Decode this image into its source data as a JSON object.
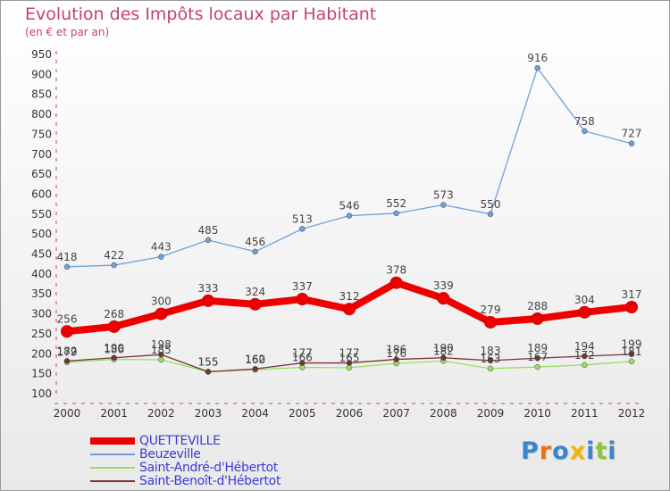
{
  "chart_data": {
    "type": "line",
    "title": "Evolution des Impôts locaux par Habitant",
    "subtitle": "(en € et par an)",
    "categories": [
      "2000",
      "2001",
      "2002",
      "2003",
      "2004",
      "2005",
      "2006",
      "2007",
      "2008",
      "2009",
      "2010",
      "2011",
      "2012"
    ],
    "ylim": [
      100,
      950
    ],
    "yticks": [
      100,
      150,
      200,
      250,
      300,
      350,
      400,
      450,
      500,
      550,
      600,
      650,
      700,
      750,
      800,
      850,
      900,
      950
    ],
    "grid": false,
    "legend_position": "bottom-left",
    "series": [
      {
        "name": "QUETTEVILLE",
        "color": "#ee0000",
        "values": [
          256,
          268,
          300,
          333,
          324,
          337,
          312,
          378,
          339,
          279,
          288,
          304,
          317
        ]
      },
      {
        "name": "Beuzeville",
        "color": "#6fa1d9",
        "values": [
          418,
          422,
          443,
          485,
          456,
          513,
          546,
          552,
          573,
          550,
          916,
          758,
          727
        ]
      },
      {
        "name": "Saint-André-d'Hébertot",
        "color": "#99dd66",
        "values": [
          179,
          186,
          185,
          155,
          160,
          166,
          165,
          176,
          182,
          163,
          167,
          172,
          181
        ]
      },
      {
        "name": "Saint-Benoît-d'Hébertot",
        "color": "#773333",
        "values": [
          182,
          190,
          198,
          155,
          162,
          177,
          177,
          186,
          190,
          183,
          189,
          194,
          199
        ]
      }
    ]
  },
  "logo": {
    "text": "Proxiti",
    "letters": [
      {
        "ch": "P",
        "color": "#3a86c8"
      },
      {
        "ch": "r",
        "color": "#e8731e"
      },
      {
        "ch": "o",
        "color": "#3a86c8"
      },
      {
        "ch": "x",
        "color": "#f2b705"
      },
      {
        "ch": "i",
        "color": "#3a86c8"
      },
      {
        "ch": "t",
        "color": "#8cc63f"
      },
      {
        "ch": "i",
        "color": "#3a86c8"
      }
    ]
  }
}
